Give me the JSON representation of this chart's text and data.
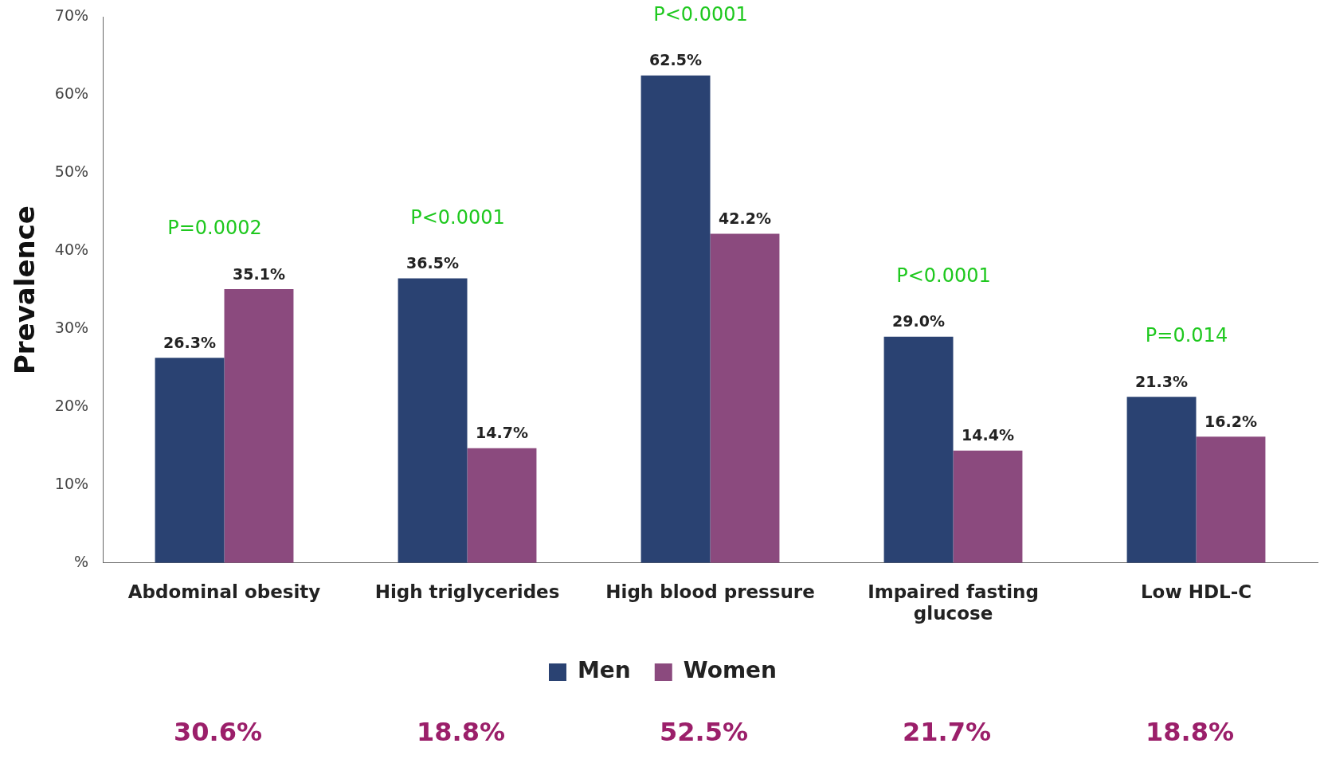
{
  "chart_data": {
    "type": "bar",
    "ylabel": "Prevalence",
    "categories": [
      "Abdominal obesity",
      "High triglycerides",
      "High blood pressure",
      "Impaired fasting glucose",
      "Low HDL-C"
    ],
    "series": [
      {
        "name": "Men",
        "color": "#2a4272",
        "values": [
          26.3,
          36.5,
          62.5,
          29.0,
          21.3
        ],
        "value_labels": [
          "26.3%",
          "36.5%",
          "62.5%",
          "29.0%",
          "21.3%"
        ]
      },
      {
        "name": "Women",
        "color": "#8b4a7e",
        "values": [
          35.1,
          14.7,
          42.2,
          14.4,
          16.2
        ],
        "value_labels": [
          "35.1%",
          "14.7%",
          "42.2%",
          "14.4%",
          "16.2%"
        ]
      }
    ],
    "ylim": [
      0,
      70
    ],
    "yticks": [
      {
        "value": 0,
        "label": "%"
      },
      {
        "value": 10,
        "label": "10%"
      },
      {
        "value": 20,
        "label": "20%"
      },
      {
        "value": 30,
        "label": "30%"
      },
      {
        "value": 40,
        "label": "40%"
      },
      {
        "value": 50,
        "label": "50%"
      },
      {
        "value": 60,
        "label": "60%"
      },
      {
        "value": 70,
        "label": "70%"
      }
    ],
    "grid": false,
    "legend": "bottom",
    "annotations": [
      "P=0.0002",
      "P<0.0001",
      "P<0.0001",
      "P<0.0001",
      "P=0.014",
      "30.6%",
      "18.8%",
      "52.5%",
      "21.7%",
      "18.8%"
    ]
  }
}
